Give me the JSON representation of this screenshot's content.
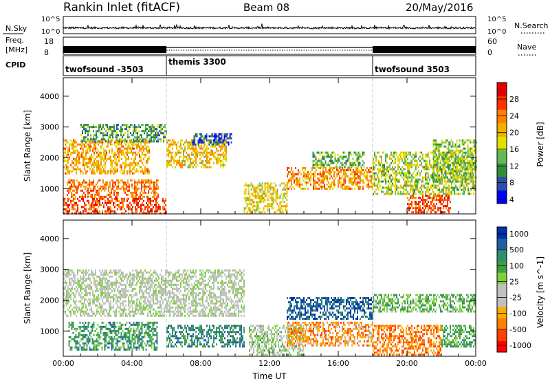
{
  "header": {
    "station": "Rankin Inlet (fitACF)",
    "beam": "Beam 08",
    "date": "20/May/2016"
  },
  "noise_panel": {
    "left_label": "N.Sky",
    "right_label": "N.Search",
    "left_ticks": [
      "10^5",
      "10^0"
    ],
    "right_ticks": [
      "10^5",
      "10^0"
    ]
  },
  "freq_panel": {
    "left_label_1": "Freq.",
    "left_label_2": "[MHz]",
    "left_ticks": [
      "18",
      "8"
    ],
    "right_label": "Nave",
    "right_ticks": [
      "60",
      "0"
    ]
  },
  "cpid": {
    "label": "CPID",
    "segments": [
      {
        "name": "twofsound -3503",
        "start_h": 0,
        "end_h": 6
      },
      {
        "name": "themis 3300",
        "start_h": 6,
        "end_h": 18
      },
      {
        "name": "twofsound 3503",
        "start_h": 18,
        "end_h": 24
      }
    ]
  },
  "chart_data": [
    {
      "type": "heatmap",
      "title": "Power",
      "ylabel": "Slant Range [km]",
      "xlabel": "Time UT",
      "xlim": [
        0,
        24
      ],
      "ylim": [
        180,
        4600
      ],
      "x_ticks": [
        "00:00",
        "04:00",
        "08:00",
        "12:00",
        "16:00",
        "20:00",
        "00:00"
      ],
      "y_ticks": [
        1000,
        2000,
        3000,
        4000
      ],
      "colorbar": {
        "label": "Power [dB]",
        "ticks": [
          "28",
          "24",
          "20",
          "16",
          "12",
          "8",
          "4"
        ],
        "colors": [
          "#0000ff",
          "#2e4fa6",
          "#2f8e3a",
          "#63b85a",
          "#e0e000",
          "#f0b000",
          "#ff8000",
          "#ff3000",
          "#e00000"
        ]
      },
      "echo_regions": [
        {
          "t0": 0.0,
          "t1": 6.0,
          "r0": 200,
          "r1": 700,
          "level": 0.85
        },
        {
          "t0": 0.2,
          "t1": 5.5,
          "r0": 700,
          "r1": 1300,
          "level": 0.75
        },
        {
          "t0": 0.0,
          "t1": 5.0,
          "r0": 1500,
          "r1": 2600,
          "level": 0.65
        },
        {
          "t0": 1.0,
          "t1": 6.0,
          "r0": 2500,
          "r1": 3100,
          "level": 0.3
        },
        {
          "t0": 6.0,
          "t1": 9.5,
          "r0": 1700,
          "r1": 2600,
          "level": 0.6
        },
        {
          "t0": 7.5,
          "t1": 9.8,
          "r0": 2400,
          "r1": 2800,
          "level": 0.15
        },
        {
          "t0": 10.5,
          "t1": 13.0,
          "r0": 200,
          "r1": 1200,
          "level": 0.55
        },
        {
          "t0": 13.0,
          "t1": 18.0,
          "r0": 1000,
          "r1": 1700,
          "level": 0.7
        },
        {
          "t0": 14.5,
          "t1": 17.5,
          "r0": 1700,
          "r1": 2200,
          "level": 0.35
        },
        {
          "t0": 18.0,
          "t1": 24.0,
          "r0": 800,
          "r1": 2200,
          "level": 0.45
        },
        {
          "t0": 20.0,
          "t1": 22.5,
          "r0": 200,
          "r1": 800,
          "level": 0.85
        },
        {
          "t0": 21.5,
          "t1": 24.0,
          "r0": 1200,
          "r1": 2600,
          "level": 0.4
        }
      ]
    },
    {
      "type": "heatmap",
      "title": "Velocity",
      "ylabel": "Slant Range [km]",
      "xlabel": "Time UT",
      "xlim": [
        0,
        24
      ],
      "ylim": [
        180,
        4600
      ],
      "x_ticks": [
        "00:00",
        "04:00",
        "08:00",
        "12:00",
        "16:00",
        "20:00",
        "00:00"
      ],
      "y_ticks": [
        1000,
        2000,
        3000,
        4000
      ],
      "colorbar": {
        "label": "Velocity [m s^-1]",
        "ticks": [
          "1000",
          "500",
          "100",
          "25",
          "-25",
          "-100",
          "-500",
          "-1000"
        ],
        "colors": [
          "#ff0000",
          "#ff4000",
          "#ff8000",
          "#ffaa00",
          "#c0c0c0",
          "#c0c0c0",
          "#7fd040",
          "#40a040",
          "#2f8e70",
          "#2060a0",
          "#0030b0"
        ]
      },
      "echo_regions": [
        {
          "t0": 0.0,
          "t1": 10.5,
          "r0": 1500,
          "r1": 3000,
          "level": 0.5
        },
        {
          "t0": 0.3,
          "t1": 5.5,
          "r0": 400,
          "r1": 1300,
          "level": 0.75
        },
        {
          "t0": 6.0,
          "t1": 10.5,
          "r0": 500,
          "r1": 1200,
          "level": 0.8
        },
        {
          "t0": 10.8,
          "t1": 14.0,
          "r0": 200,
          "r1": 1200,
          "level": 0.55
        },
        {
          "t0": 13.0,
          "t1": 18.0,
          "r0": 1400,
          "r1": 2100,
          "level": 0.9
        },
        {
          "t0": 13.0,
          "t1": 18.0,
          "r0": 500,
          "r1": 1300,
          "level": 0.25
        },
        {
          "t0": 18.0,
          "t1": 22.0,
          "r0": 200,
          "r1": 1200,
          "level": 0.2
        },
        {
          "t0": 18.0,
          "t1": 24.0,
          "r0": 1600,
          "r1": 2200,
          "level": 0.65
        },
        {
          "t0": 22.0,
          "t1": 24.0,
          "r0": 500,
          "r1": 1200,
          "level": 0.7
        }
      ]
    }
  ]
}
